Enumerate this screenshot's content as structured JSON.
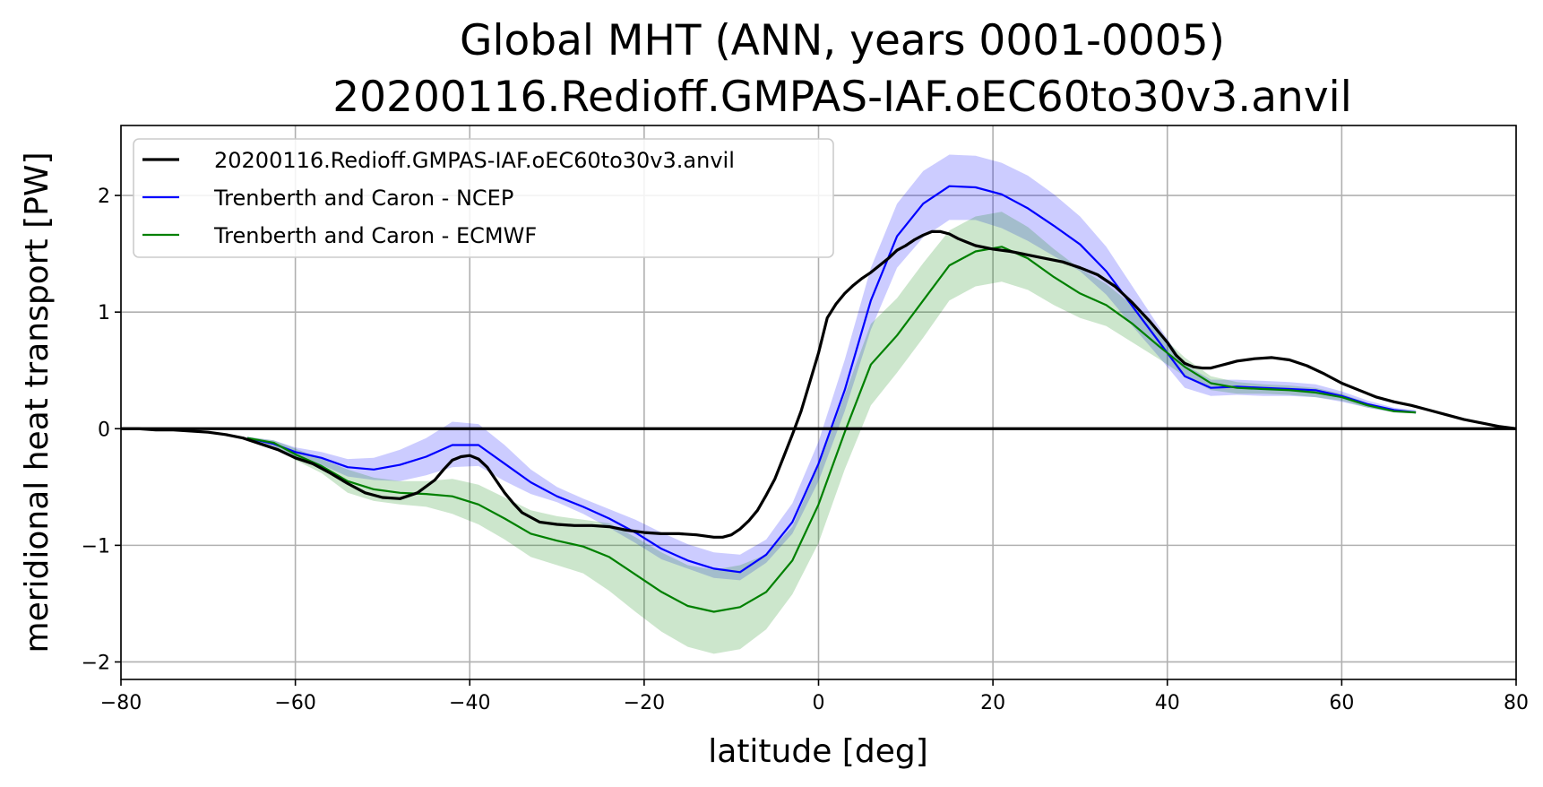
{
  "chart_data": {
    "type": "line",
    "title": "Global MHT (ANN, years 0001-0005)",
    "subtitle": "20200116.Redioff.GMPAS-IAF.oEC60to30v3.anvil",
    "xlabel": "latitude [deg]",
    "ylabel": "meridional heat transport [PW]",
    "xlim": [
      -80,
      80
    ],
    "ylim": [
      -2.15,
      2.6
    ],
    "xticks": [
      -80,
      -60,
      -40,
      -20,
      0,
      20,
      40,
      60,
      80
    ],
    "yticks": [
      -2,
      -1,
      0,
      1,
      2
    ],
    "xtick_labels": [
      "−80",
      "−60",
      "−40",
      "−20",
      "0",
      "20",
      "40",
      "60",
      "80"
    ],
    "ytick_labels": [
      "−2",
      "−1",
      "0",
      "1",
      "2"
    ],
    "grid": true,
    "legend_position": "top-left",
    "zero_line": 0,
    "series": [
      {
        "name": "20200116.Redioff.GMPAS-IAF.oEC60to30v3.anvil",
        "color": "#000000",
        "style": "thick",
        "x": [
          -80,
          -78,
          -76,
          -74,
          -72,
          -70,
          -68,
          -66,
          -64,
          -62,
          -60,
          -58,
          -56,
          -54,
          -52,
          -50,
          -48,
          -46,
          -44,
          -43,
          -42,
          -41,
          -40,
          -39,
          -38,
          -37,
          -36,
          -35,
          -34,
          -32,
          -30,
          -28,
          -26,
          -24,
          -22,
          -20,
          -18,
          -16,
          -14,
          -12,
          -11,
          -10,
          -9,
          -8,
          -7,
          -6,
          -5,
          -4,
          -3,
          -2,
          -1,
          0,
          1,
          2,
          3,
          4,
          5,
          6,
          7,
          8,
          9,
          10,
          11,
          12,
          13,
          14,
          15,
          16,
          17,
          18,
          20,
          22,
          24,
          26,
          28,
          30,
          32,
          34,
          36,
          38,
          40,
          41,
          42,
          43,
          44,
          45,
          46,
          47,
          48,
          50,
          52,
          54,
          56,
          58,
          60,
          62,
          64,
          66,
          68,
          70,
          72,
          74,
          76,
          78,
          80
        ],
        "values": [
          0.0,
          0.0,
          -0.01,
          -0.01,
          -0.02,
          -0.03,
          -0.05,
          -0.08,
          -0.13,
          -0.18,
          -0.25,
          -0.3,
          -0.38,
          -0.47,
          -0.55,
          -0.59,
          -0.6,
          -0.55,
          -0.44,
          -0.35,
          -0.27,
          -0.24,
          -0.23,
          -0.26,
          -0.33,
          -0.44,
          -0.55,
          -0.64,
          -0.72,
          -0.8,
          -0.82,
          -0.83,
          -0.83,
          -0.84,
          -0.87,
          -0.89,
          -0.9,
          -0.9,
          -0.91,
          -0.93,
          -0.93,
          -0.91,
          -0.86,
          -0.79,
          -0.7,
          -0.57,
          -0.43,
          -0.24,
          -0.05,
          0.15,
          0.4,
          0.65,
          0.95,
          1.07,
          1.16,
          1.23,
          1.29,
          1.34,
          1.4,
          1.46,
          1.53,
          1.57,
          1.62,
          1.66,
          1.69,
          1.69,
          1.67,
          1.63,
          1.6,
          1.57,
          1.54,
          1.52,
          1.49,
          1.46,
          1.43,
          1.38,
          1.32,
          1.22,
          1.08,
          0.92,
          0.74,
          0.63,
          0.56,
          0.53,
          0.52,
          0.52,
          0.54,
          0.56,
          0.58,
          0.6,
          0.61,
          0.59,
          0.54,
          0.47,
          0.39,
          0.33,
          0.27,
          0.23,
          0.2,
          0.16,
          0.12,
          0.08,
          0.05,
          0.02,
          0.0
        ]
      },
      {
        "name": "Trenberth and Caron - NCEP",
        "color": "#0000ff",
        "band_color": "#0000ff",
        "x": [
          -65.5,
          -62.5,
          -60,
          -57,
          -54,
          -51,
          -48,
          -45,
          -42,
          -39,
          -36,
          -33,
          -30,
          -27,
          -24,
          -21,
          -18,
          -15,
          -12,
          -9,
          -6,
          -3,
          0,
          3,
          6,
          9,
          12,
          15,
          18,
          21,
          24,
          27,
          30,
          33,
          36,
          39,
          42,
          45,
          48,
          51,
          54,
          57,
          60,
          63,
          66,
          68.5
        ],
        "values": [
          -0.08,
          -0.13,
          -0.2,
          -0.25,
          -0.33,
          -0.35,
          -0.31,
          -0.24,
          -0.14,
          -0.14,
          -0.3,
          -0.46,
          -0.58,
          -0.67,
          -0.77,
          -0.89,
          -1.03,
          -1.13,
          -1.2,
          -1.23,
          -1.08,
          -0.8,
          -0.3,
          0.33,
          1.1,
          1.65,
          1.93,
          2.08,
          2.07,
          2.01,
          1.89,
          1.74,
          1.58,
          1.35,
          1.05,
          0.75,
          0.45,
          0.35,
          0.36,
          0.35,
          0.34,
          0.33,
          0.28,
          0.21,
          0.16,
          0.14
        ],
        "lower": [
          -0.09,
          -0.17,
          -0.25,
          -0.31,
          -0.41,
          -0.44,
          -0.45,
          -0.4,
          -0.33,
          -0.32,
          -0.45,
          -0.56,
          -0.63,
          -0.73,
          -0.85,
          -0.98,
          -1.12,
          -1.2,
          -1.28,
          -1.3,
          -1.15,
          -0.9,
          -0.45,
          0.15,
          0.85,
          1.38,
          1.64,
          1.79,
          1.79,
          1.72,
          1.61,
          1.48,
          1.35,
          1.15,
          0.88,
          0.62,
          0.35,
          0.28,
          0.29,
          0.28,
          0.28,
          0.27,
          0.23,
          0.18,
          0.14,
          0.13
        ],
        "upper": [
          -0.07,
          -0.1,
          -0.16,
          -0.2,
          -0.26,
          -0.25,
          -0.18,
          -0.08,
          0.06,
          0.04,
          -0.14,
          -0.35,
          -0.5,
          -0.6,
          -0.69,
          -0.78,
          -0.89,
          -0.99,
          -1.06,
          -1.08,
          -0.95,
          -0.64,
          -0.11,
          0.59,
          1.38,
          1.93,
          2.21,
          2.35,
          2.34,
          2.28,
          2.17,
          2.01,
          1.82,
          1.56,
          1.22,
          0.88,
          0.55,
          0.42,
          0.42,
          0.41,
          0.4,
          0.38,
          0.32,
          0.24,
          0.18,
          0.16
        ]
      },
      {
        "name": "Trenberth and Caron - ECMWF",
        "color": "#008000",
        "band_color": "#008000",
        "x": [
          -65.5,
          -62.5,
          -60,
          -57,
          -54,
          -51,
          -48,
          -45,
          -42,
          -39,
          -36,
          -33,
          -30,
          -27,
          -24,
          -21,
          -18,
          -15,
          -12,
          -9,
          -6,
          -3,
          0,
          3,
          6,
          9,
          12,
          15,
          18,
          21,
          24,
          27,
          30,
          33,
          36,
          39,
          42,
          45,
          48,
          51,
          54,
          57,
          60,
          63,
          66,
          68.5
        ],
        "values": [
          -0.08,
          -0.12,
          -0.22,
          -0.32,
          -0.45,
          -0.52,
          -0.55,
          -0.56,
          -0.58,
          -0.65,
          -0.77,
          -0.9,
          -0.96,
          -1.01,
          -1.1,
          -1.25,
          -1.4,
          -1.52,
          -1.57,
          -1.53,
          -1.4,
          -1.13,
          -0.65,
          -0.03,
          0.55,
          0.8,
          1.1,
          1.4,
          1.52,
          1.56,
          1.46,
          1.3,
          1.16,
          1.06,
          0.9,
          0.71,
          0.53,
          0.39,
          0.35,
          0.34,
          0.33,
          0.31,
          0.27,
          0.2,
          0.15,
          0.14
        ],
        "lower": [
          -0.09,
          -0.15,
          -0.27,
          -0.38,
          -0.55,
          -0.62,
          -0.65,
          -0.67,
          -0.73,
          -0.82,
          -0.95,
          -1.1,
          -1.17,
          -1.24,
          -1.39,
          -1.57,
          -1.74,
          -1.87,
          -1.93,
          -1.89,
          -1.72,
          -1.42,
          -0.98,
          -0.35,
          0.2,
          0.48,
          0.78,
          1.1,
          1.22,
          1.26,
          1.19,
          1.06,
          0.95,
          0.88,
          0.74,
          0.6,
          0.45,
          0.33,
          0.3,
          0.3,
          0.29,
          0.27,
          0.24,
          0.18,
          0.14,
          0.13
        ],
        "upper": [
          -0.07,
          -0.1,
          -0.17,
          -0.26,
          -0.35,
          -0.42,
          -0.45,
          -0.45,
          -0.43,
          -0.48,
          -0.59,
          -0.7,
          -0.75,
          -0.78,
          -0.81,
          -0.93,
          -1.06,
          -1.17,
          -1.21,
          -1.17,
          -1.08,
          -0.84,
          -0.32,
          0.29,
          0.9,
          1.12,
          1.42,
          1.7,
          1.82,
          1.86,
          1.73,
          1.54,
          1.37,
          1.24,
          1.06,
          0.82,
          0.61,
          0.45,
          0.4,
          0.38,
          0.37,
          0.35,
          0.3,
          0.22,
          0.16,
          0.15
        ]
      }
    ]
  }
}
